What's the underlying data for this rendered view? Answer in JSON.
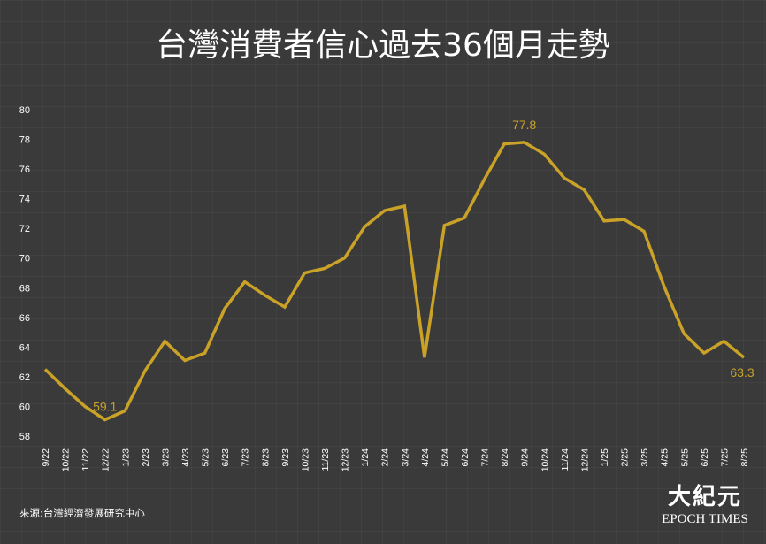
{
  "title": "台灣消費者信心過去36個月走勢",
  "source": "來源:台灣經濟發展研究中心",
  "logo": {
    "chinese": "大紀元",
    "english": "EPOCH TIMES"
  },
  "colors": {
    "background": "#3a3a3a",
    "line": "#c9a227",
    "text": "#ffffff"
  },
  "chart_data": {
    "type": "line",
    "title": "台灣消費者信心過去36個月走勢",
    "xlabel": "",
    "ylabel": "",
    "ylim": [
      58,
      80
    ],
    "yticks": [
      58,
      60,
      62,
      64,
      66,
      68,
      70,
      72,
      74,
      76,
      78,
      80
    ],
    "grid": false,
    "legend": "none",
    "categories": [
      "9/22",
      "10/22",
      "11/22",
      "12/22",
      "1/23",
      "2/23",
      "3/23",
      "4/23",
      "5/23",
      "6/23",
      "7/23",
      "8/23",
      "9/23",
      "10/23",
      "11/23",
      "12/23",
      "1/24",
      "2/24",
      "3/24",
      "4/24",
      "5/24",
      "6/24",
      "7/24",
      "8/24",
      "9/24",
      "10/24",
      "11/24",
      "12/24",
      "1/25",
      "2/25",
      "3/25",
      "4/25",
      "5/25",
      "6/25",
      "7/25",
      "8/25"
    ],
    "series": [
      {
        "values": [
          62.5,
          61.2,
          60.0,
          59.1,
          59.7,
          62.4,
          64.4,
          63.1,
          63.6,
          66.6,
          68.4,
          67.5,
          66.7,
          69.0,
          69.3,
          70.0,
          72.1,
          73.2,
          73.5,
          63.3,
          72.2,
          72.7,
          75.3,
          77.7,
          77.8,
          77.0,
          75.4,
          74.6,
          72.5,
          72.6,
          71.8,
          68.1,
          64.9,
          63.6,
          64.4,
          63.3
        ]
      }
    ],
    "annotations": [
      {
        "index": 3,
        "label": "59.1"
      },
      {
        "index": 24,
        "label": "77.8"
      },
      {
        "index": 35,
        "label": "63.3"
      }
    ]
  }
}
